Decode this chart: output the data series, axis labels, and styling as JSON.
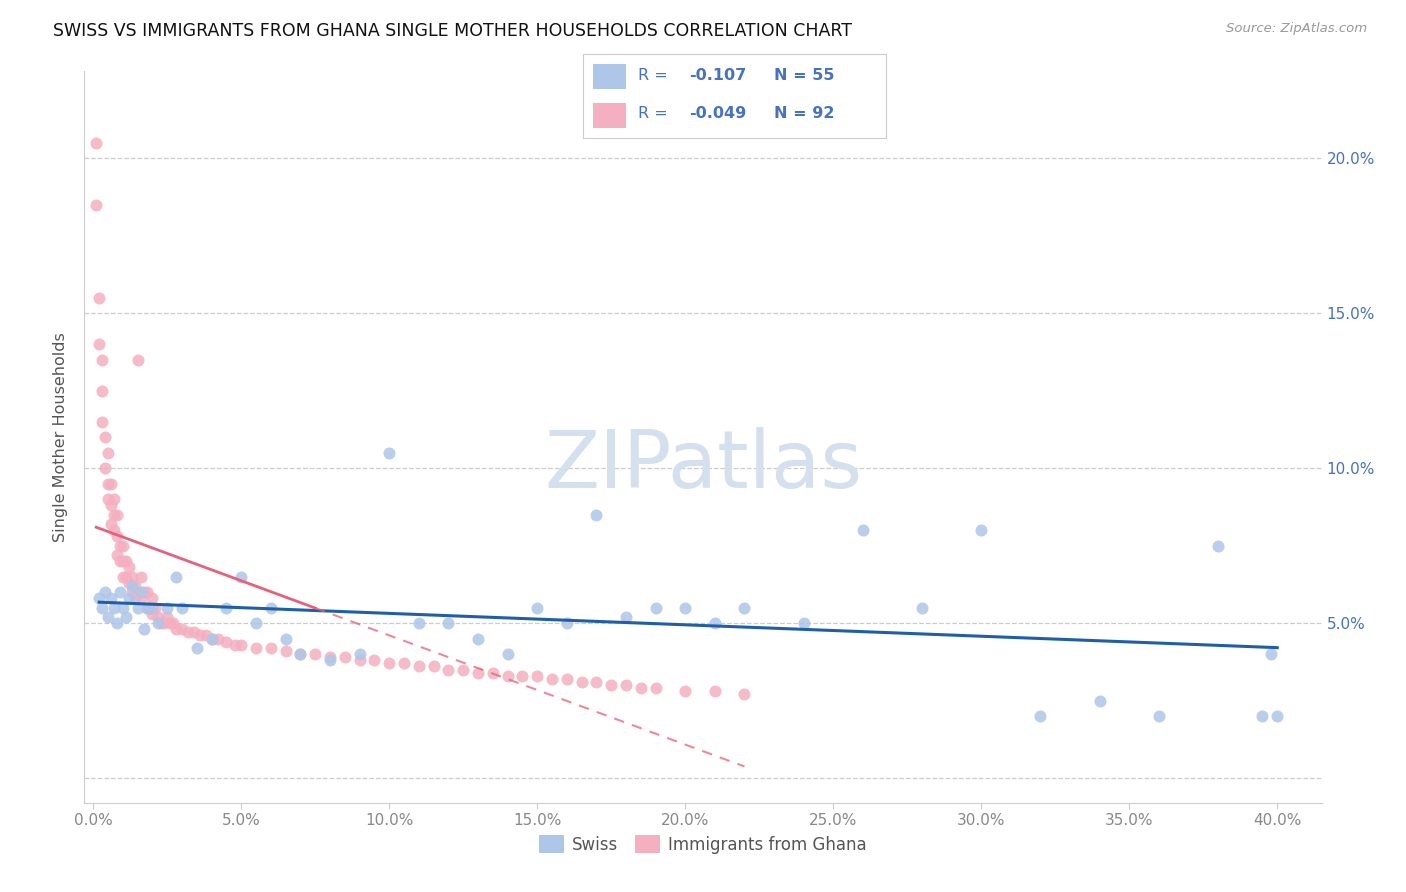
{
  "title": "SWISS VS IMMIGRANTS FROM GHANA SINGLE MOTHER HOUSEHOLDS CORRELATION CHART",
  "source": "Source: ZipAtlas.com",
  "ylabel": "Single Mother Households",
  "swiss_color": "#aec6e8",
  "ghana_color": "#f4afc0",
  "swiss_line_color": "#1f5faa",
  "ghana_line_color": "#e8607a",
  "right_tick_color": "#4472c4",
  "watermark_color": "#d5e0ef",
  "legend_text_color": "#4472c4",
  "tick_label_color": "#888888",
  "swiss_x": [
    0.002,
    0.003,
    0.004,
    0.005,
    0.006,
    0.007,
    0.008,
    0.009,
    0.01,
    0.011,
    0.012,
    0.013,
    0.015,
    0.016,
    0.017,
    0.018,
    0.02,
    0.022,
    0.025,
    0.028,
    0.03,
    0.035,
    0.04,
    0.045,
    0.05,
    0.055,
    0.06,
    0.065,
    0.07,
    0.08,
    0.09,
    0.1,
    0.11,
    0.12,
    0.13,
    0.14,
    0.15,
    0.16,
    0.17,
    0.18,
    0.19,
    0.2,
    0.21,
    0.22,
    0.24,
    0.26,
    0.28,
    0.3,
    0.32,
    0.34,
    0.36,
    0.38,
    0.395,
    0.398,
    0.4
  ],
  "swiss_y": [
    0.058,
    0.055,
    0.06,
    0.052,
    0.058,
    0.055,
    0.05,
    0.06,
    0.055,
    0.052,
    0.058,
    0.062,
    0.055,
    0.06,
    0.048,
    0.055,
    0.055,
    0.05,
    0.055,
    0.065,
    0.055,
    0.042,
    0.045,
    0.055,
    0.065,
    0.05,
    0.055,
    0.045,
    0.04,
    0.038,
    0.04,
    0.105,
    0.05,
    0.05,
    0.045,
    0.04,
    0.055,
    0.05,
    0.085,
    0.052,
    0.055,
    0.055,
    0.05,
    0.055,
    0.05,
    0.08,
    0.055,
    0.08,
    0.02,
    0.025,
    0.02,
    0.075,
    0.02,
    0.04,
    0.02
  ],
  "ghana_x": [
    0.001,
    0.001,
    0.002,
    0.002,
    0.003,
    0.003,
    0.003,
    0.004,
    0.004,
    0.005,
    0.005,
    0.005,
    0.006,
    0.006,
    0.006,
    0.007,
    0.007,
    0.007,
    0.008,
    0.008,
    0.008,
    0.009,
    0.009,
    0.01,
    0.01,
    0.01,
    0.011,
    0.011,
    0.012,
    0.012,
    0.013,
    0.013,
    0.014,
    0.014,
    0.015,
    0.015,
    0.016,
    0.016,
    0.017,
    0.018,
    0.018,
    0.019,
    0.02,
    0.02,
    0.021,
    0.022,
    0.023,
    0.024,
    0.025,
    0.026,
    0.027,
    0.028,
    0.03,
    0.032,
    0.034,
    0.036,
    0.038,
    0.04,
    0.042,
    0.045,
    0.048,
    0.05,
    0.055,
    0.06,
    0.065,
    0.07,
    0.075,
    0.08,
    0.085,
    0.09,
    0.095,
    0.1,
    0.105,
    0.11,
    0.115,
    0.12,
    0.125,
    0.13,
    0.135,
    0.14,
    0.145,
    0.15,
    0.155,
    0.16,
    0.165,
    0.17,
    0.175,
    0.18,
    0.185,
    0.19,
    0.2,
    0.21,
    0.22
  ],
  "ghana_y": [
    0.205,
    0.185,
    0.155,
    0.14,
    0.135,
    0.125,
    0.115,
    0.11,
    0.1,
    0.105,
    0.095,
    0.09,
    0.095,
    0.088,
    0.082,
    0.09,
    0.085,
    0.08,
    0.085,
    0.078,
    0.072,
    0.075,
    0.07,
    0.075,
    0.07,
    0.065,
    0.07,
    0.065,
    0.068,
    0.063,
    0.065,
    0.06,
    0.062,
    0.058,
    0.135,
    0.06,
    0.065,
    0.058,
    0.06,
    0.06,
    0.055,
    0.055,
    0.058,
    0.053,
    0.055,
    0.052,
    0.05,
    0.05,
    0.052,
    0.05,
    0.05,
    0.048,
    0.048,
    0.047,
    0.047,
    0.046,
    0.046,
    0.045,
    0.045,
    0.044,
    0.043,
    0.043,
    0.042,
    0.042,
    0.041,
    0.04,
    0.04,
    0.039,
    0.039,
    0.038,
    0.038,
    0.037,
    0.037,
    0.036,
    0.036,
    0.035,
    0.035,
    0.034,
    0.034,
    0.033,
    0.033,
    0.033,
    0.032,
    0.032,
    0.031,
    0.031,
    0.03,
    0.03,
    0.029,
    0.029,
    0.028,
    0.028,
    0.027
  ],
  "xlim": [
    -0.003,
    0.415
  ],
  "ylim": [
    -0.008,
    0.228
  ],
  "xticks": [
    0.0,
    0.05,
    0.1,
    0.15,
    0.2,
    0.25,
    0.3,
    0.35,
    0.4
  ],
  "yticks_right": [
    0.05,
    0.1,
    0.15,
    0.2
  ],
  "grid_lines": [
    0.0,
    0.05,
    0.1,
    0.15,
    0.2
  ]
}
